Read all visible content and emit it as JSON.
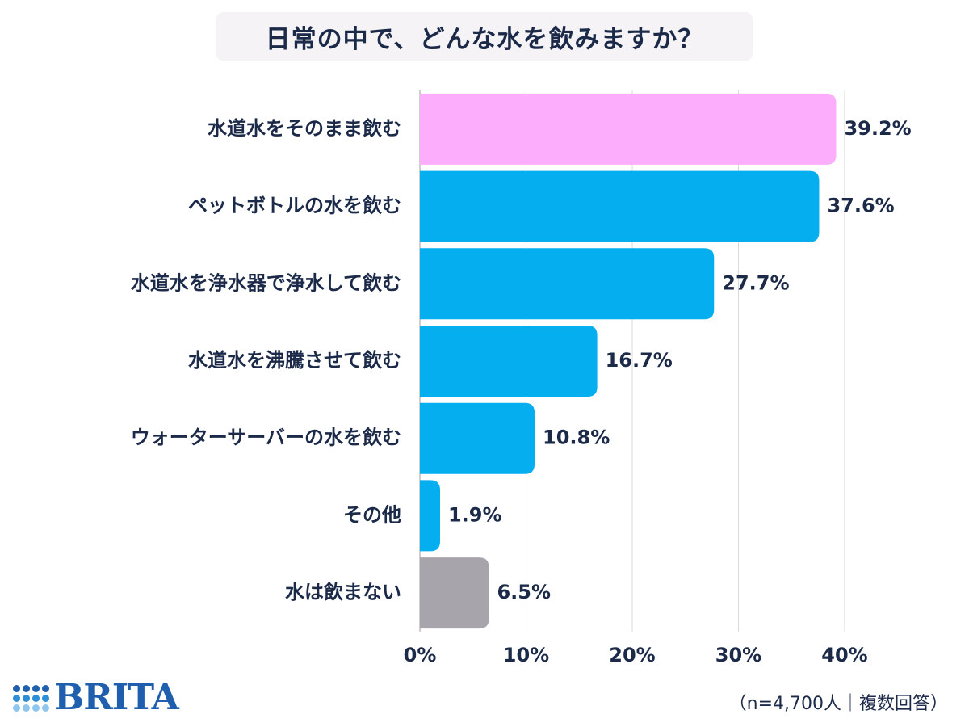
{
  "title": "日常の中で、どんな水を飲みますか？",
  "footnote": "（n=4,700人｜複数回答）",
  "logo": {
    "text": "BRITA",
    "color": "#1f5fae",
    "dot_colors": [
      "#1f5fae",
      "#1f5fae",
      "#1f5fae",
      "#1f5fae",
      "#2e8fd6",
      "#2e8fd6",
      "#2e8fd6",
      "#2e8fd6",
      "#8fc6ee",
      "#8fc6ee",
      "#8fc6ee",
      "#8fc6ee"
    ]
  },
  "colors": {
    "highlight": "#fcadfc",
    "default": "#04aeef",
    "none": "#a7a4ab",
    "text": "#1c2a4a",
    "grid": "#d9d9d9",
    "axis": "#bdbdbd"
  },
  "chart_data": {
    "type": "bar",
    "orientation": "horizontal",
    "title": "日常の中で、どんな水を飲みますか？",
    "categories": [
      "水道水をそのまま飲む",
      "ペットボトルの水を飲む",
      "水道水を浄水器で浄水して飲む",
      "水道水を沸騰させて飲む",
      "ウォーターサーバーの水を飲む",
      "その他",
      "水は飲まない"
    ],
    "values": [
      39.2,
      37.6,
      27.7,
      16.7,
      10.8,
      1.9,
      6.5
    ],
    "value_labels": [
      "39.2%",
      "37.6%",
      "27.7%",
      "16.7%",
      "10.8%",
      "1.9%",
      "6.5%"
    ],
    "bar_color_keys": [
      "highlight",
      "default",
      "default",
      "default",
      "default",
      "default",
      "none"
    ],
    "xlim": [
      0,
      40
    ],
    "xticks": [
      0,
      10,
      20,
      30,
      40
    ],
    "xtick_labels": [
      "0%",
      "10%",
      "20%",
      "30%",
      "40%"
    ],
    "grid": true,
    "legend": "none"
  }
}
